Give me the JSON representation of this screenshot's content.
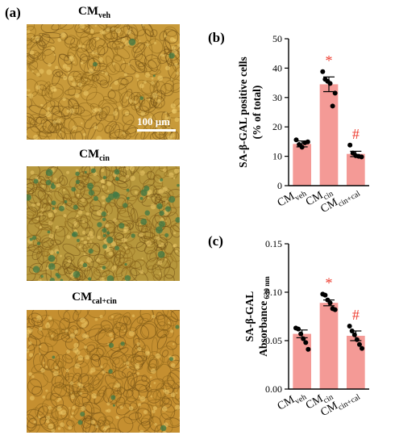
{
  "panel_a": {
    "letter": "(a)",
    "images": [
      {
        "title_main": "CM",
        "title_sub": "veh",
        "scale_label": "100 μm",
        "tint": "#c89a3a",
        "green": 0.03
      },
      {
        "title_main": "CM",
        "title_sub": "cin",
        "tint": "#b6973c",
        "green": 0.45
      },
      {
        "title_main": "CM",
        "title_sub": "cal+cin",
        "tint": "#c58f30",
        "green": 0.06
      }
    ]
  },
  "colors": {
    "bar": "#f49a96",
    "star": "#ee3b2e",
    "hash": "#ee3b2e",
    "dot": "#000000"
  },
  "chart_data": [
    {
      "type": "bar",
      "panel": "(b)",
      "categories": [
        {
          "main": "CM",
          "sub": "veh"
        },
        {
          "main": "CM",
          "sub": "cin"
        },
        {
          "main": "CM",
          "sub": "cin+cal"
        }
      ],
      "values": [
        14.2,
        34.5,
        10.8
      ],
      "errors": [
        1.0,
        2.5,
        0.9
      ],
      "points": [
        [
          15.6,
          14.0,
          13.1,
          14.6,
          14.9
        ],
        [
          38.8,
          36.2,
          35.5,
          34.8,
          27.1,
          31.5
        ],
        [
          13.8,
          11.1,
          10.2,
          10.0,
          9.8
        ]
      ],
      "ylabel_lines": [
        "SA-β-GAL positive cells",
        "(% of total)"
      ],
      "ylim": [
        0,
        50
      ],
      "yticks": [
        "0",
        "10",
        "20",
        "30",
        "40",
        "50"
      ],
      "annotations": [
        {
          "index": 1,
          "symbol": "*"
        },
        {
          "index": 2,
          "symbol": "#"
        }
      ]
    },
    {
      "type": "bar",
      "panel": "(c)",
      "categories": [
        {
          "main": "CM",
          "sub": "veh"
        },
        {
          "main": "CM",
          "sub": "cin"
        },
        {
          "main": "CM",
          "sub": "cin+cal"
        }
      ],
      "values": [
        0.057,
        0.089,
        0.055
      ],
      "errors": [
        0.004,
        0.003,
        0.005
      ],
      "points": [
        [
          0.063,
          0.062,
          0.057,
          0.052,
          0.048,
          0.041
        ],
        [
          0.098,
          0.097,
          0.092,
          0.089,
          0.083,
          0.082
        ],
        [
          0.065,
          0.06,
          0.056,
          0.051,
          0.046,
          0.042
        ]
      ],
      "ylabel_lines": [
        "SA-β-GAL",
        "Absorbance"
      ],
      "ylabel_sub": "630 nm",
      "ylim": [
        0,
        0.15
      ],
      "yticks": [
        "0.00",
        "0.05",
        "0.10",
        "0.15"
      ],
      "annotations": [
        {
          "index": 1,
          "symbol": "*"
        },
        {
          "index": 2,
          "symbol": "#"
        }
      ]
    }
  ]
}
